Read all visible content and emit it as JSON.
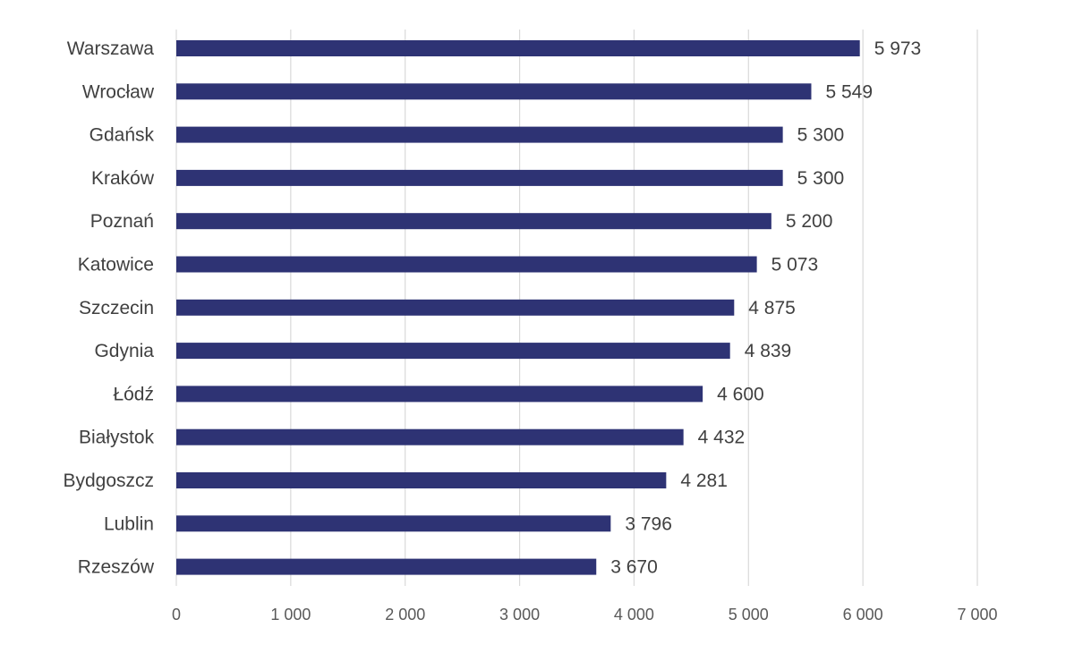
{
  "chart_data": {
    "type": "bar",
    "orientation": "horizontal",
    "categories": [
      "Warszawa",
      "Wrocław",
      "Gdańsk",
      "Kraków",
      "Poznań",
      "Katowice",
      "Szczecin",
      "Gdynia",
      "Łódź",
      "Białystok",
      "Bydgoszcz",
      "Lublin",
      "Rzeszów"
    ],
    "values": [
      5973,
      5549,
      5300,
      5300,
      5200,
      5073,
      4875,
      4839,
      4600,
      4432,
      4281,
      3796,
      3670
    ],
    "value_labels": [
      "5 973",
      "5 549",
      "5 300",
      "5 300",
      "5 200",
      "5 073",
      "4 875",
      "4 839",
      "4 600",
      "4 432",
      "4 281",
      "3 796",
      "3 670"
    ],
    "xlim": [
      0,
      7000
    ],
    "x_ticks": [
      0,
      1000,
      2000,
      3000,
      4000,
      5000,
      6000,
      7000
    ],
    "x_tick_labels": [
      "0",
      "1 000",
      "2 000",
      "3 000",
      "4 000",
      "5 000",
      "6 000",
      "7 000"
    ],
    "grid": "vertical",
    "legend": "none",
    "colors": {
      "bar": "#2e3374",
      "grid": "#d9d9d9",
      "text": "#404040"
    }
  }
}
